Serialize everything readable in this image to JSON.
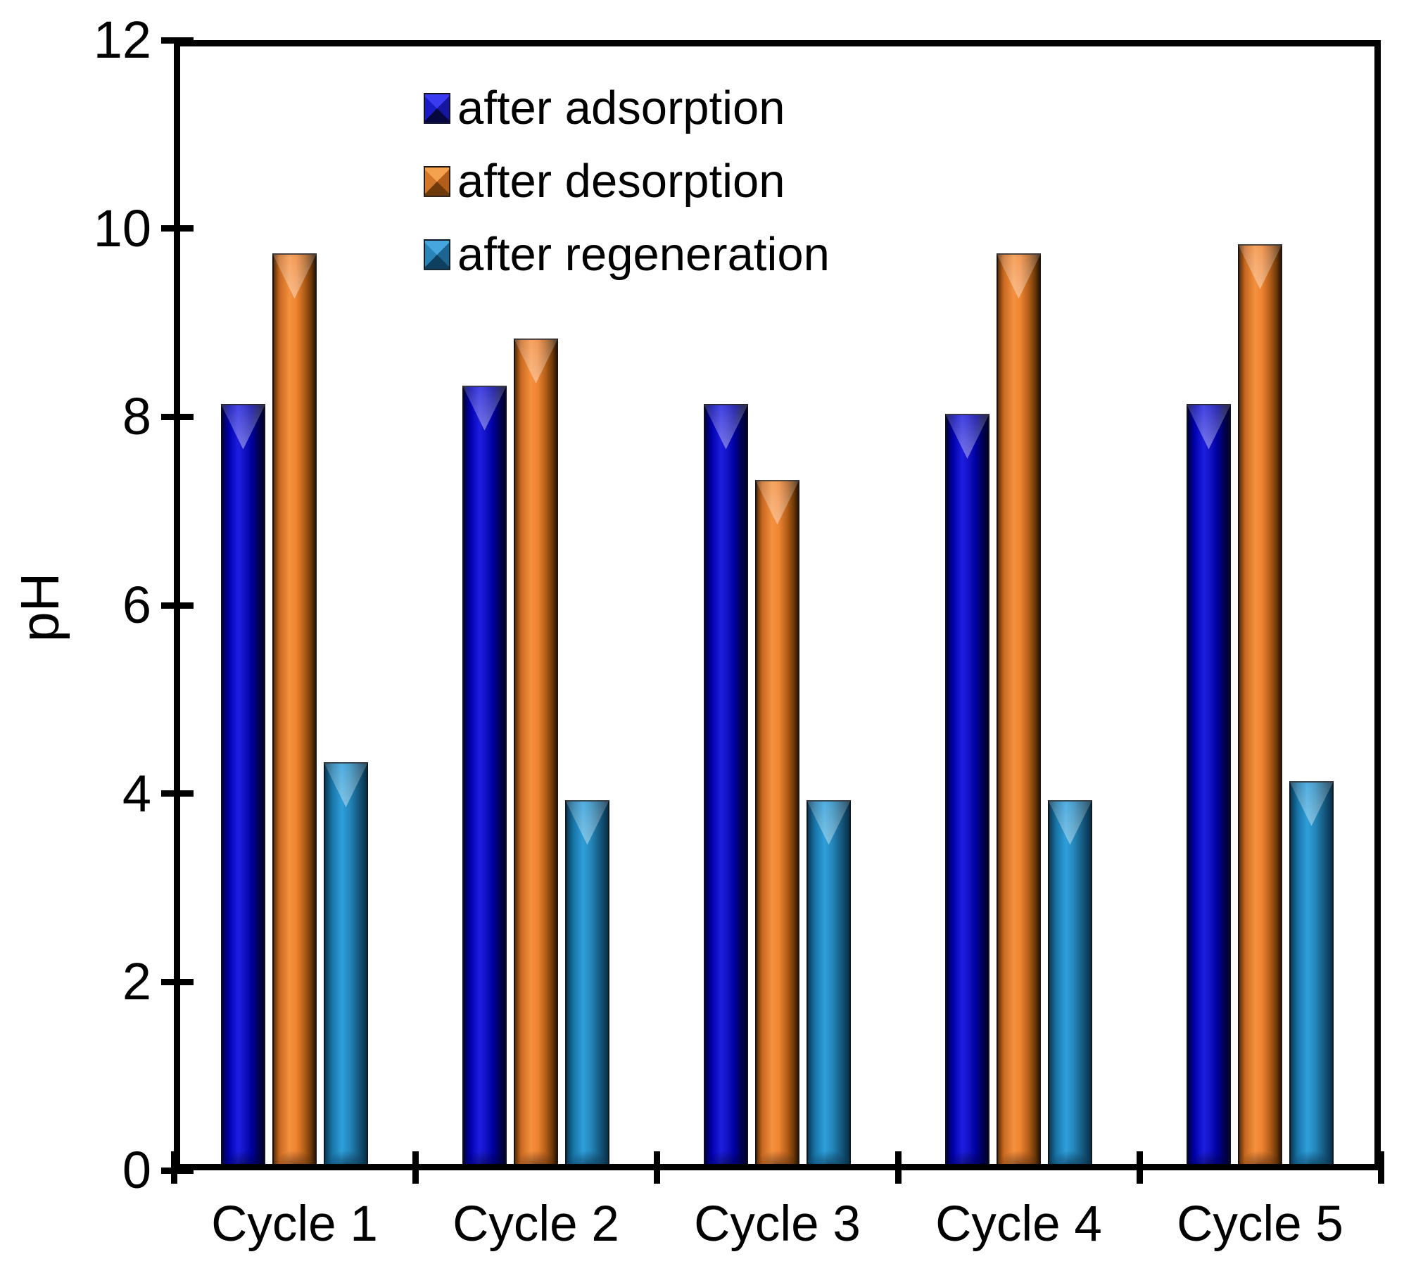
{
  "chart_data": {
    "type": "bar",
    "title": "",
    "xlabel": "",
    "ylabel": "pH",
    "categories": [
      "Cycle 1",
      "Cycle 2",
      "Cycle 3",
      "Cycle 4",
      "Cycle 5"
    ],
    "series": [
      {
        "name": "after adsorption",
        "color": "#1b1bd4",
        "values": [
          8.1,
          8.3,
          8.1,
          8.0,
          8.1
        ]
      },
      {
        "name": "after desorption",
        "color": "#ef8a3a",
        "values": [
          9.7,
          8.8,
          7.3,
          9.7,
          9.8
        ]
      },
      {
        "name": "after regeneration",
        "color": "#2e96cf",
        "values": [
          4.3,
          3.9,
          3.9,
          3.9,
          4.1
        ]
      }
    ],
    "ylim": [
      0,
      12
    ],
    "yticks": [
      0,
      2,
      4,
      6,
      8,
      10,
      12
    ],
    "grid": false,
    "legend_position": "upper-left-inside",
    "bar_style": "3d-beveled"
  }
}
